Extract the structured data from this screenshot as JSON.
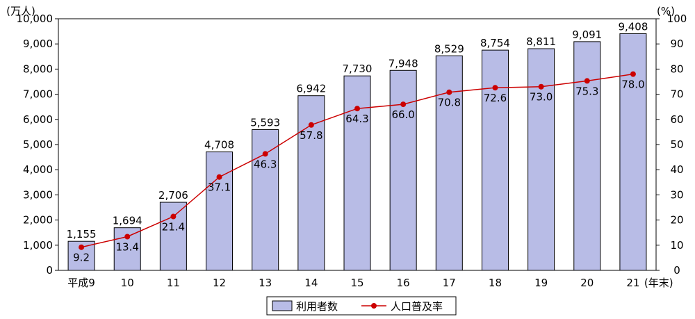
{
  "chart_data": {
    "type": "bar",
    "categories": [
      "平成9",
      "10",
      "11",
      "12",
      "13",
      "14",
      "15",
      "16",
      "17",
      "18",
      "19",
      "20",
      "21"
    ],
    "x_suffix": "(年末)",
    "series": [
      {
        "name": "利用者数",
        "type": "bar",
        "axis": "left",
        "values": [
          1155,
          1694,
          2706,
          4708,
          5593,
          6942,
          7730,
          7948,
          8529,
          8754,
          8811,
          9091,
          9408
        ],
        "labels": [
          "1,155",
          "1,694",
          "2,706",
          "4,708",
          "5,593",
          "6,942",
          "7,730",
          "7,948",
          "8,529",
          "8,754",
          "8,811",
          "9,091",
          "9,408"
        ],
        "color": "#b8bce6"
      },
      {
        "name": "人口普及率",
        "type": "line",
        "axis": "right",
        "values": [
          9.2,
          13.4,
          21.4,
          37.1,
          46.3,
          57.8,
          64.3,
          66.0,
          70.8,
          72.6,
          73.0,
          75.3,
          78.0
        ],
        "labels": [
          "9.2",
          "13.4",
          "21.4",
          "37.1",
          "46.3",
          "57.8",
          "64.3",
          "66.0",
          "70.8",
          "72.6",
          "73.0",
          "75.3",
          "78.0"
        ],
        "color": "#cc0000"
      }
    ],
    "left_axis": {
      "unit": "(万人)",
      "ylim": [
        0,
        10000
      ],
      "ticks": [
        0,
        1000,
        2000,
        3000,
        4000,
        5000,
        6000,
        7000,
        8000,
        9000,
        10000
      ],
      "tick_labels": [
        "0",
        "1,000",
        "2,000",
        "3,000",
        "4,000",
        "5,000",
        "6,000",
        "7,000",
        "8,000",
        "9,000",
        "10,000"
      ]
    },
    "right_axis": {
      "unit": "(%)",
      "ylim": [
        0,
        100
      ],
      "ticks": [
        0,
        10,
        20,
        30,
        40,
        50,
        60,
        70,
        80,
        90,
        100
      ],
      "tick_labels": [
        "0",
        "10",
        "20",
        "30",
        "40",
        "50",
        "60",
        "70",
        "80",
        "90",
        "100"
      ]
    },
    "grid": false,
    "legend": "bottom-center"
  }
}
